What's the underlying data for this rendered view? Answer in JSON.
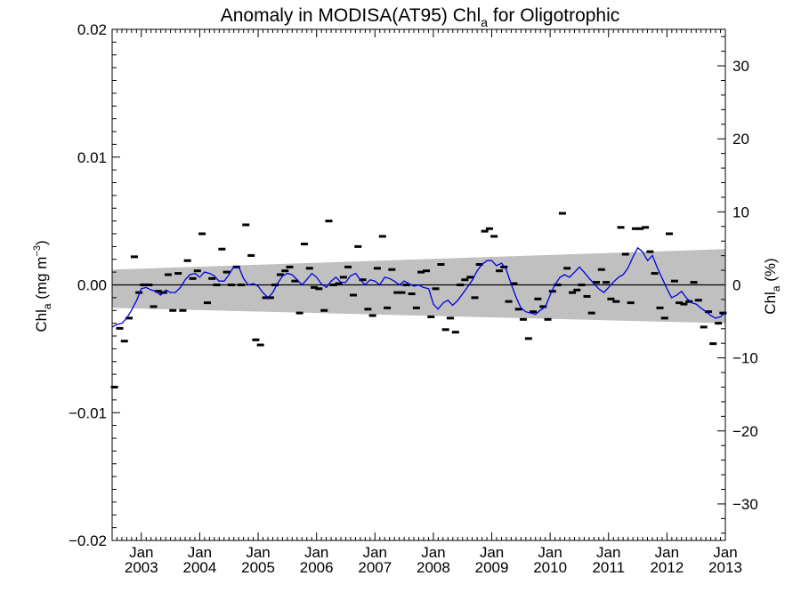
{
  "chart_data": {
    "type": "scatter",
    "title_main": "Anomaly in MODISA(AT95) Chl",
    "title_sub": "a",
    "title_tail": " for Oligotrophic",
    "ylabel_left_main": "Chl",
    "ylabel_left_sub": "a",
    "ylabel_left_unit": " (mg m",
    "ylabel_left_sup": "−3",
    "ylabel_left_close": ")",
    "ylabel_right_main": "Chl",
    "ylabel_right_sub": "a",
    "ylabel_right_unit": " (%)",
    "xlim": [
      2002.5,
      2013.0
    ],
    "ylim_left": [
      -0.02,
      0.02
    ],
    "ylim_right": [
      -35,
      35
    ],
    "yticks_left": [
      {
        "v": 0.02,
        "label": "0.02"
      },
      {
        "v": 0.01,
        "label": "0.01"
      },
      {
        "v": 0.0,
        "label": "0.00"
      },
      {
        "v": -0.01,
        "label": "−0.01"
      },
      {
        "v": -0.02,
        "label": "−0.02"
      }
    ],
    "yticks_right": [
      {
        "v": 30,
        "label": "30"
      },
      {
        "v": 20,
        "label": "20"
      },
      {
        "v": 10,
        "label": "10"
      },
      {
        "v": 0,
        "label": "0"
      },
      {
        "v": -10,
        "label": "−10"
      },
      {
        "v": -20,
        "label": "−20"
      },
      {
        "v": -30,
        "label": "−30"
      }
    ],
    "xticks": [
      {
        "v": 2003,
        "month": "Jan",
        "year": "2003"
      },
      {
        "v": 2004,
        "month": "Jan",
        "year": "2004"
      },
      {
        "v": 2005,
        "month": "Jan",
        "year": "2005"
      },
      {
        "v": 2006,
        "month": "Jan",
        "year": "2006"
      },
      {
        "v": 2007,
        "month": "Jan",
        "year": "2007"
      },
      {
        "v": 2008,
        "month": "Jan",
        "year": "2008"
      },
      {
        "v": 2009,
        "month": "Jan",
        "year": "2009"
      },
      {
        "v": 2010,
        "month": "Jan",
        "year": "2010"
      },
      {
        "v": 2011,
        "month": "Jan",
        "year": "2011"
      },
      {
        "v": 2012,
        "month": "Jan",
        "year": "2012"
      },
      {
        "v": 2013,
        "month": "Jan",
        "year": "2013"
      }
    ],
    "trend_band": {
      "start_x": 2002.5,
      "start_upper": 0.0012,
      "start_lower": -0.0018,
      "end_x": 2013.0,
      "end_upper": 0.0028,
      "end_lower": -0.003
    },
    "colors": {
      "band": "#c0c0c0",
      "line": "#0000dd",
      "points": "#000000",
      "zero": "#000000"
    },
    "monthly_anomaly": [
      [
        2002.54,
        -0.008
      ],
      [
        2002.63,
        -0.0034
      ],
      [
        2002.71,
        -0.0044
      ],
      [
        2002.79,
        -0.0026
      ],
      [
        2002.88,
        0.0022
      ],
      [
        2002.96,
        -0.0006
      ],
      [
        2003.04,
        0.0
      ],
      [
        2003.13,
        0.0
      ],
      [
        2003.21,
        -0.0017
      ],
      [
        2003.29,
        -0.0005
      ],
      [
        2003.38,
        -0.0006
      ],
      [
        2003.46,
        0.0008
      ],
      [
        2003.54,
        -0.002
      ],
      [
        2003.63,
        0.0009
      ],
      [
        2003.71,
        -0.002
      ],
      [
        2003.79,
        0.0019
      ],
      [
        2003.88,
        0.0005
      ],
      [
        2003.96,
        0.0011
      ],
      [
        2004.04,
        0.004
      ],
      [
        2004.13,
        -0.0014
      ],
      [
        2004.21,
        0.0005
      ],
      [
        2004.29,
        0.0
      ],
      [
        2004.38,
        0.0028
      ],
      [
        2004.46,
        0.001
      ],
      [
        2004.54,
        0.0
      ],
      [
        2004.63,
        0.0014
      ],
      [
        2004.71,
        0.0
      ],
      [
        2004.79,
        0.0047
      ],
      [
        2004.88,
        0.0023
      ],
      [
        2004.96,
        -0.0043
      ],
      [
        2005.04,
        -0.0047
      ],
      [
        2005.13,
        -0.001
      ],
      [
        2005.21,
        -0.001
      ],
      [
        2005.29,
        0.0
      ],
      [
        2005.38,
        0.0008
      ],
      [
        2005.46,
        0.0011
      ],
      [
        2005.54,
        0.0014
      ],
      [
        2005.63,
        0.0003
      ],
      [
        2005.71,
        -0.0022
      ],
      [
        2005.79,
        0.0032
      ],
      [
        2005.88,
        0.0013
      ],
      [
        2005.96,
        -0.0002
      ],
      [
        2006.04,
        -0.0003
      ],
      [
        2006.13,
        -0.002
      ],
      [
        2006.21,
        0.005
      ],
      [
        2006.29,
        0.0
      ],
      [
        2006.38,
        0.0001
      ],
      [
        2006.46,
        0.0006
      ],
      [
        2006.54,
        0.0014
      ],
      [
        2006.63,
        -0.0008
      ],
      [
        2006.71,
        0.003
      ],
      [
        2006.79,
        0.0004
      ],
      [
        2006.88,
        -0.0019
      ],
      [
        2006.96,
        -0.0024
      ],
      [
        2007.04,
        0.0013
      ],
      [
        2007.13,
        0.0038
      ],
      [
        2007.21,
        -0.0018
      ],
      [
        2007.29,
        0.0012
      ],
      [
        2007.38,
        -0.0006
      ],
      [
        2007.46,
        -0.0006
      ],
      [
        2007.54,
        0.0
      ],
      [
        2007.63,
        -0.0007
      ],
      [
        2007.71,
        -0.0018
      ],
      [
        2007.79,
        0.001
      ],
      [
        2007.88,
        0.0011
      ],
      [
        2007.96,
        -0.0025
      ],
      [
        2008.04,
        -0.0003
      ],
      [
        2008.13,
        0.0016
      ],
      [
        2008.21,
        -0.0035
      ],
      [
        2008.29,
        -0.0026
      ],
      [
        2008.38,
        -0.0037
      ],
      [
        2008.46,
        0.0
      ],
      [
        2008.54,
        0.0004
      ],
      [
        2008.63,
        0.0006
      ],
      [
        2008.71,
        -0.001
      ],
      [
        2008.79,
        0.0016
      ],
      [
        2008.88,
        0.0042
      ],
      [
        2008.96,
        0.0044
      ],
      [
        2009.04,
        0.0038
      ],
      [
        2009.13,
        0.0011
      ],
      [
        2009.21,
        0.0014
      ],
      [
        2009.29,
        -0.0013
      ],
      [
        2009.38,
        0.0001
      ],
      [
        2009.46,
        -0.0019
      ],
      [
        2009.54,
        -0.0027
      ],
      [
        2009.63,
        -0.0042
      ],
      [
        2009.71,
        -0.0021
      ],
      [
        2009.79,
        -0.0011
      ],
      [
        2009.88,
        -0.0017
      ],
      [
        2009.96,
        -0.0027
      ],
      [
        2010.04,
        -0.0005
      ],
      [
        2010.13,
        0.0
      ],
      [
        2010.21,
        0.0056
      ],
      [
        2010.29,
        0.0013
      ],
      [
        2010.38,
        -0.0006
      ],
      [
        2010.46,
        -0.0004
      ],
      [
        2010.54,
        0.0
      ],
      [
        2010.63,
        -0.0009
      ],
      [
        2010.71,
        -0.0022
      ],
      [
        2010.79,
        0.0002
      ],
      [
        2010.88,
        0.0012
      ],
      [
        2010.96,
        0.0002
      ],
      [
        2011.04,
        -0.0011
      ],
      [
        2011.13,
        -0.0013
      ],
      [
        2011.21,
        0.0045
      ],
      [
        2011.29,
        0.0024
      ],
      [
        2011.38,
        -0.0014
      ],
      [
        2011.46,
        0.0044
      ],
      [
        2011.54,
        0.0044
      ],
      [
        2011.63,
        0.0045
      ],
      [
        2011.71,
        0.0026
      ],
      [
        2011.79,
        0.0009
      ],
      [
        2011.88,
        -0.0018
      ],
      [
        2011.96,
        -0.0026
      ],
      [
        2012.04,
        0.004
      ],
      [
        2012.13,
        0.0003
      ],
      [
        2012.21,
        -0.0014
      ],
      [
        2012.29,
        -0.0015
      ],
      [
        2012.38,
        -0.0013
      ],
      [
        2012.46,
        0.0002
      ],
      [
        2012.54,
        -0.0012
      ],
      [
        2012.63,
        -0.0033
      ],
      [
        2012.71,
        -0.0021
      ],
      [
        2012.79,
        -0.0046
      ],
      [
        2012.88,
        -0.003
      ],
      [
        2012.96,
        -0.0022
      ]
    ],
    "running_mean": [
      [
        2002.5,
        -0.0033
      ],
      [
        2002.58,
        -0.0031
      ],
      [
        2002.67,
        -0.003
      ],
      [
        2002.75,
        -0.0026
      ],
      [
        2002.83,
        -0.002
      ],
      [
        2002.92,
        -0.0012
      ],
      [
        2003.0,
        -0.0003
      ],
      [
        2003.08,
        -0.0002
      ],
      [
        2003.17,
        -0.0004
      ],
      [
        2003.25,
        -0.0005
      ],
      [
        2003.33,
        -0.0008
      ],
      [
        2003.42,
        -0.0004
      ],
      [
        2003.5,
        -0.0006
      ],
      [
        2003.58,
        -0.0006
      ],
      [
        2003.67,
        -0.0002
      ],
      [
        2003.75,
        0.0004
      ],
      [
        2003.83,
        0.0008
      ],
      [
        2003.92,
        0.0009
      ],
      [
        2004.0,
        0.0006
      ],
      [
        2004.08,
        0.001
      ],
      [
        2004.17,
        0.0009
      ],
      [
        2004.25,
        0.0007
      ],
      [
        2004.33,
        0.0003
      ],
      [
        2004.42,
        0.0003
      ],
      [
        2004.5,
        0.0008
      ],
      [
        2004.58,
        0.0014
      ],
      [
        2004.67,
        0.0014
      ],
      [
        2004.75,
        0.0005
      ],
      [
        2004.83,
        0.0
      ],
      [
        2004.92,
        0.0001
      ],
      [
        2005.0,
        -0.0001
      ],
      [
        2005.08,
        -0.0006
      ],
      [
        2005.17,
        -0.001
      ],
      [
        2005.25,
        -0.0006
      ],
      [
        2005.33,
        0.0001
      ],
      [
        2005.42,
        0.0007
      ],
      [
        2005.5,
        0.0009
      ],
      [
        2005.58,
        0.0008
      ],
      [
        2005.67,
        0.0004
      ],
      [
        2005.75,
        0.0
      ],
      [
        2005.83,
        0.0004
      ],
      [
        2005.92,
        0.0009
      ],
      [
        2006.0,
        0.0006
      ],
      [
        2006.08,
        0.0001
      ],
      [
        2006.17,
        -0.0002
      ],
      [
        2006.25,
        0.0003
      ],
      [
        2006.33,
        0.0006
      ],
      [
        2006.42,
        0.0002
      ],
      [
        2006.5,
        0.0002
      ],
      [
        2006.58,
        0.0007
      ],
      [
        2006.67,
        0.0009
      ],
      [
        2006.75,
        0.0004
      ],
      [
        2006.83,
        0.0
      ],
      [
        2006.92,
        0.0004
      ],
      [
        2007.0,
        0.0003
      ],
      [
        2007.08,
        0.0
      ],
      [
        2007.17,
        0.0006
      ],
      [
        2007.25,
        0.0005
      ],
      [
        2007.33,
        0.0003
      ],
      [
        2007.42,
        0.0
      ],
      [
        2007.5,
        0.0003
      ],
      [
        2007.58,
        0.0001
      ],
      [
        2007.67,
        -0.0001
      ],
      [
        2007.75,
        0.0
      ],
      [
        2007.83,
        -0.0002
      ],
      [
        2007.92,
        -0.0003
      ],
      [
        2008.0,
        -0.0015
      ],
      [
        2008.08,
        -0.0019
      ],
      [
        2008.17,
        -0.0014
      ],
      [
        2008.25,
        -0.0012
      ],
      [
        2008.33,
        -0.0016
      ],
      [
        2008.42,
        -0.0012
      ],
      [
        2008.5,
        -0.0007
      ],
      [
        2008.58,
        -0.0002
      ],
      [
        2008.67,
        0.0004
      ],
      [
        2008.75,
        0.0011
      ],
      [
        2008.83,
        0.0016
      ],
      [
        2008.92,
        0.0019
      ],
      [
        2009.0,
        0.0019
      ],
      [
        2009.08,
        0.0015
      ],
      [
        2009.17,
        0.0017
      ],
      [
        2009.25,
        0.0012
      ],
      [
        2009.33,
        0.0001
      ],
      [
        2009.42,
        -0.001
      ],
      [
        2009.5,
        -0.0018
      ],
      [
        2009.58,
        -0.0021
      ],
      [
        2009.67,
        -0.0022
      ],
      [
        2009.75,
        -0.0023
      ],
      [
        2009.83,
        -0.002
      ],
      [
        2009.92,
        -0.0017
      ],
      [
        2010.0,
        -0.0008
      ],
      [
        2010.08,
        0.0
      ],
      [
        2010.17,
        0.0006
      ],
      [
        2010.25,
        0.0008
      ],
      [
        2010.33,
        0.0006
      ],
      [
        2010.42,
        0.001
      ],
      [
        2010.5,
        0.0014
      ],
      [
        2010.58,
        0.001
      ],
      [
        2010.67,
        0.0005
      ],
      [
        2010.75,
        0.0001
      ],
      [
        2010.83,
        -0.0003
      ],
      [
        2010.92,
        -0.0006
      ],
      [
        2011.0,
        -0.0002
      ],
      [
        2011.08,
        0.0002
      ],
      [
        2011.17,
        0.0006
      ],
      [
        2011.25,
        0.0008
      ],
      [
        2011.33,
        0.0013
      ],
      [
        2011.42,
        0.0022
      ],
      [
        2011.5,
        0.0029
      ],
      [
        2011.58,
        0.0026
      ],
      [
        2011.67,
        0.0019
      ],
      [
        2011.75,
        0.0023
      ],
      [
        2011.83,
        0.0014
      ],
      [
        2011.92,
        0.0005
      ],
      [
        2012.0,
        -0.0003
      ],
      [
        2012.08,
        -0.001
      ],
      [
        2012.17,
        -0.0008
      ],
      [
        2012.25,
        -0.0005
      ],
      [
        2012.33,
        -0.001
      ],
      [
        2012.42,
        -0.0014
      ],
      [
        2012.5,
        -0.0015
      ],
      [
        2012.58,
        -0.0018
      ],
      [
        2012.67,
        -0.0021
      ],
      [
        2012.75,
        -0.0024
      ],
      [
        2012.83,
        -0.0026
      ],
      [
        2012.92,
        -0.0025
      ],
      [
        2013.0,
        -0.0021
      ]
    ]
  }
}
